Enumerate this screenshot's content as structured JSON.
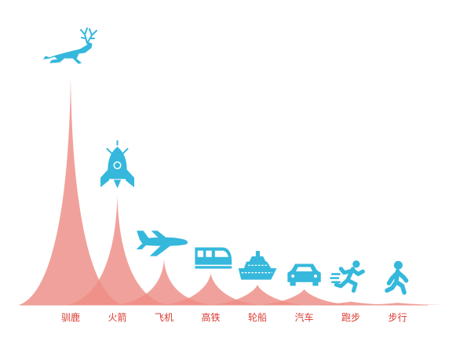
{
  "chart_data": {
    "type": "area",
    "title": "",
    "xlabel": "",
    "ylabel": "",
    "categories": [
      "驯鹿",
      "火箭",
      "飞机",
      "高铁",
      "轮船",
      "汽车",
      "跑步",
      "步行"
    ],
    "values": [
      100,
      48,
      20,
      14,
      9,
      7,
      1.5,
      1
    ],
    "icons": [
      "deer-icon",
      "rocket-icon",
      "airplane-icon",
      "train-icon",
      "ship-icon",
      "car-icon",
      "runner-icon",
      "walker-icon"
    ],
    "colors": {
      "peak": "#ee8c85",
      "icon": "#35b8dc",
      "label": "#d93a30",
      "baseline": "#e9a09a"
    }
  }
}
